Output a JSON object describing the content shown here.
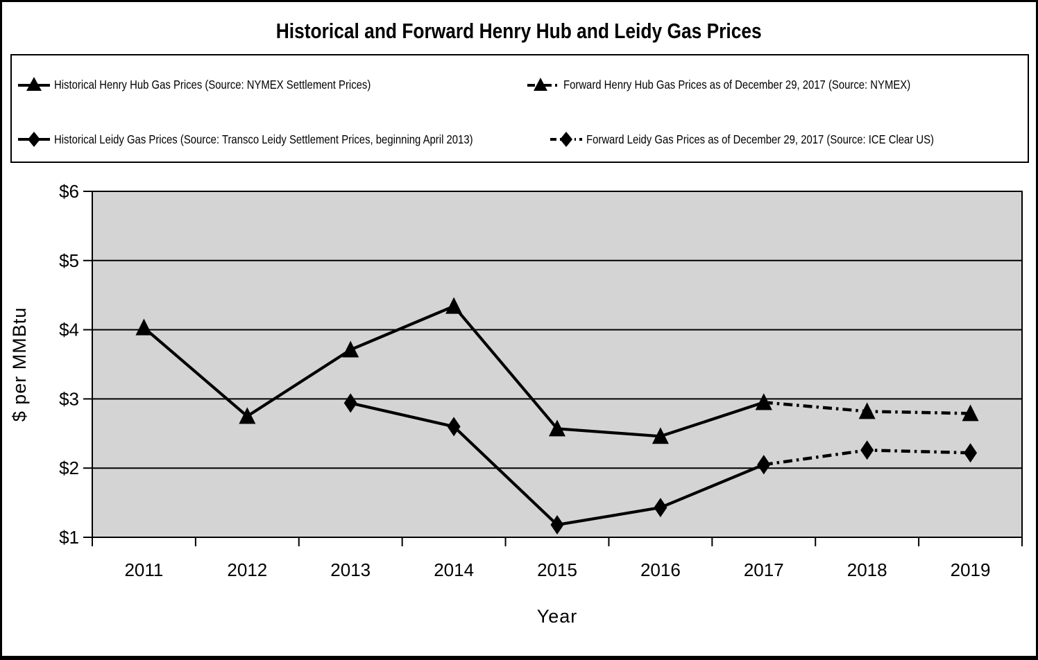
{
  "colors": {
    "line": "#000000",
    "plot_background": "#D4D4D4",
    "grid": "#000000",
    "text": "#000000",
    "page_background": "#FFFFFF"
  },
  "chart_data": {
    "type": "line",
    "title": "Historical and Forward Henry Hub and Leidy Gas Prices",
    "xlabel": "Year",
    "ylabel": "$ per MMBtu",
    "ylim": [
      1,
      6
    ],
    "grid": "horizontal",
    "legend_position": "top-box",
    "categories": [
      "2011",
      "2012",
      "2013",
      "2014",
      "2015",
      "2016",
      "2017",
      "2018",
      "2019"
    ],
    "y_ticks": [
      {
        "v": 6,
        "label": "$6"
      },
      {
        "v": 5,
        "label": "$5"
      },
      {
        "v": 4,
        "label": "$4"
      },
      {
        "v": 3,
        "label": "$3"
      },
      {
        "v": 2,
        "label": "$2"
      },
      {
        "v": 1,
        "label": "$1"
      }
    ],
    "series": [
      {
        "name": "Historical Henry Hub Gas Prices (Source: NYMEX Settlement Prices)",
        "marker": "triangle",
        "line": "solid",
        "values": [
          4.03,
          2.75,
          3.71,
          4.34,
          2.57,
          2.46,
          2.95,
          null,
          null
        ]
      },
      {
        "name": "Forward Henry Hub Gas Prices as of December 29, 2017 (Source: NYMEX)",
        "marker": "triangle",
        "line": "dashdot",
        "values": [
          null,
          null,
          null,
          null,
          null,
          null,
          2.95,
          2.82,
          2.79
        ]
      },
      {
        "name": "Historical Leidy Gas Prices (Source: Transco Leidy Settlement Prices, beginning April 2013)",
        "marker": "diamond",
        "line": "solid",
        "values": [
          null,
          null,
          2.94,
          2.6,
          1.18,
          1.43,
          2.05,
          null,
          null
        ]
      },
      {
        "name": "Forward Leidy Gas Prices as of December 29, 2017 (Source: ICE Clear US)",
        "marker": "diamond",
        "line": "dashdot",
        "values": [
          null,
          null,
          null,
          null,
          null,
          null,
          2.05,
          2.26,
          2.22
        ]
      }
    ]
  }
}
